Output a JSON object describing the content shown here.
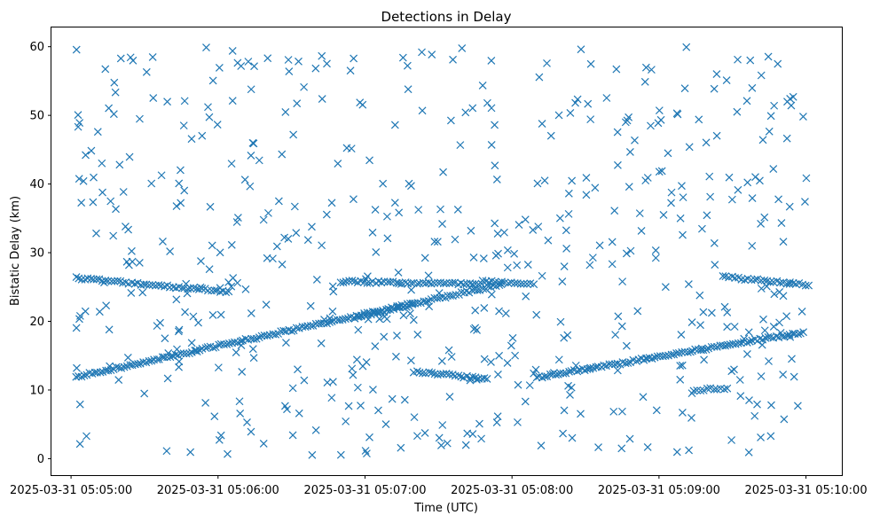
{
  "chart_data": {
    "type": "scatter",
    "title": "Detections in Delay",
    "xlabel": "Time (UTC)",
    "ylabel": "Bistatic Delay (km)",
    "marker": "x",
    "marker_color": "#1f77b4",
    "xlim": [
      "2025-03-31 05:04:52",
      "2025-03-31 05:10:15"
    ],
    "ylim": [
      -2.4,
      62.8
    ],
    "x_ticks": [
      "2025-03-31 05:05:00",
      "2025-03-31 05:06:00",
      "2025-03-31 05:07:00",
      "2025-03-31 05:08:00",
      "2025-03-31 05:09:00",
      "2025-03-31 05:10:00"
    ],
    "y_ticks": [
      0,
      10,
      20,
      30,
      40,
      50,
      60
    ],
    "grid": false,
    "start_time": "2025-03-31 05:05:00",
    "tracks": [
      {
        "t_start": 2,
        "t_end": 176,
        "y_start": 11.9,
        "y_end": 25.4,
        "step": 1.1
      },
      {
        "t_start": 2,
        "t_end": 65,
        "y_start": 26.3,
        "y_end": 24.3,
        "step": 1.2
      },
      {
        "t_start": 110,
        "t_end": 168,
        "y_start": 25.8,
        "y_end": 25.4,
        "step": 1.2
      },
      {
        "t_start": 116,
        "t_end": 140,
        "y_start": 20.4,
        "y_end": 22.5,
        "step": 1.3
      },
      {
        "t_start": 140,
        "t_end": 170,
        "y_start": 12.7,
        "y_end": 11.6,
        "step": 1.2
      },
      {
        "t_start": 168,
        "t_end": 190,
        "y_start": 25.9,
        "y_end": 25.3,
        "step": 1.3
      },
      {
        "t_start": 190,
        "t_end": 300,
        "y_start": 11.8,
        "y_end": 18.5,
        "step": 1.1
      },
      {
        "t_start": 266,
        "t_end": 302,
        "y_start": 26.5,
        "y_end": 25.3,
        "step": 1.3
      },
      {
        "t_start": 254,
        "t_end": 268,
        "y_start": 10.0,
        "y_end": 10.3,
        "step": 1.4
      }
    ],
    "scatter_seed": 73,
    "scatter_count": 560,
    "scatter_t_range": [
      2,
      302
    ],
    "scatter_y_range": [
      0.5,
      60
    ]
  }
}
